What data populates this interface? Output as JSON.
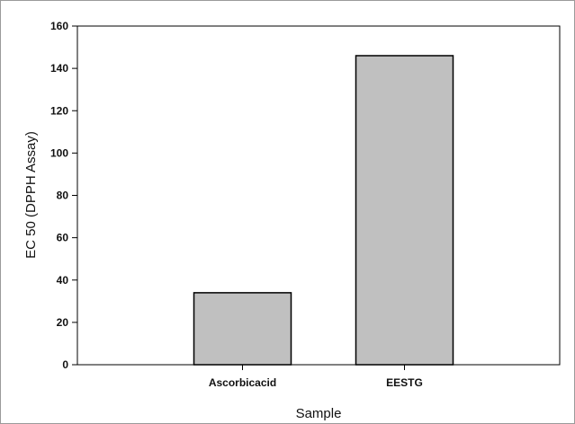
{
  "chart_data": {
    "type": "bar",
    "title": "",
    "xlabel": "Sample",
    "ylabel": "EC 50 (DPPH Assay)",
    "categories": [
      "Ascorbicacid",
      "EESTG"
    ],
    "values": [
      34,
      146
    ],
    "ylim": [
      0,
      160
    ],
    "yticks": [
      0,
      20,
      40,
      60,
      80,
      100,
      120,
      140,
      160
    ],
    "grid": false,
    "legend": "none",
    "colors": {
      "bar_fill": "#c0c0c0",
      "bar_stroke": "#000000",
      "axis": "#000000",
      "text": "#111111"
    }
  }
}
